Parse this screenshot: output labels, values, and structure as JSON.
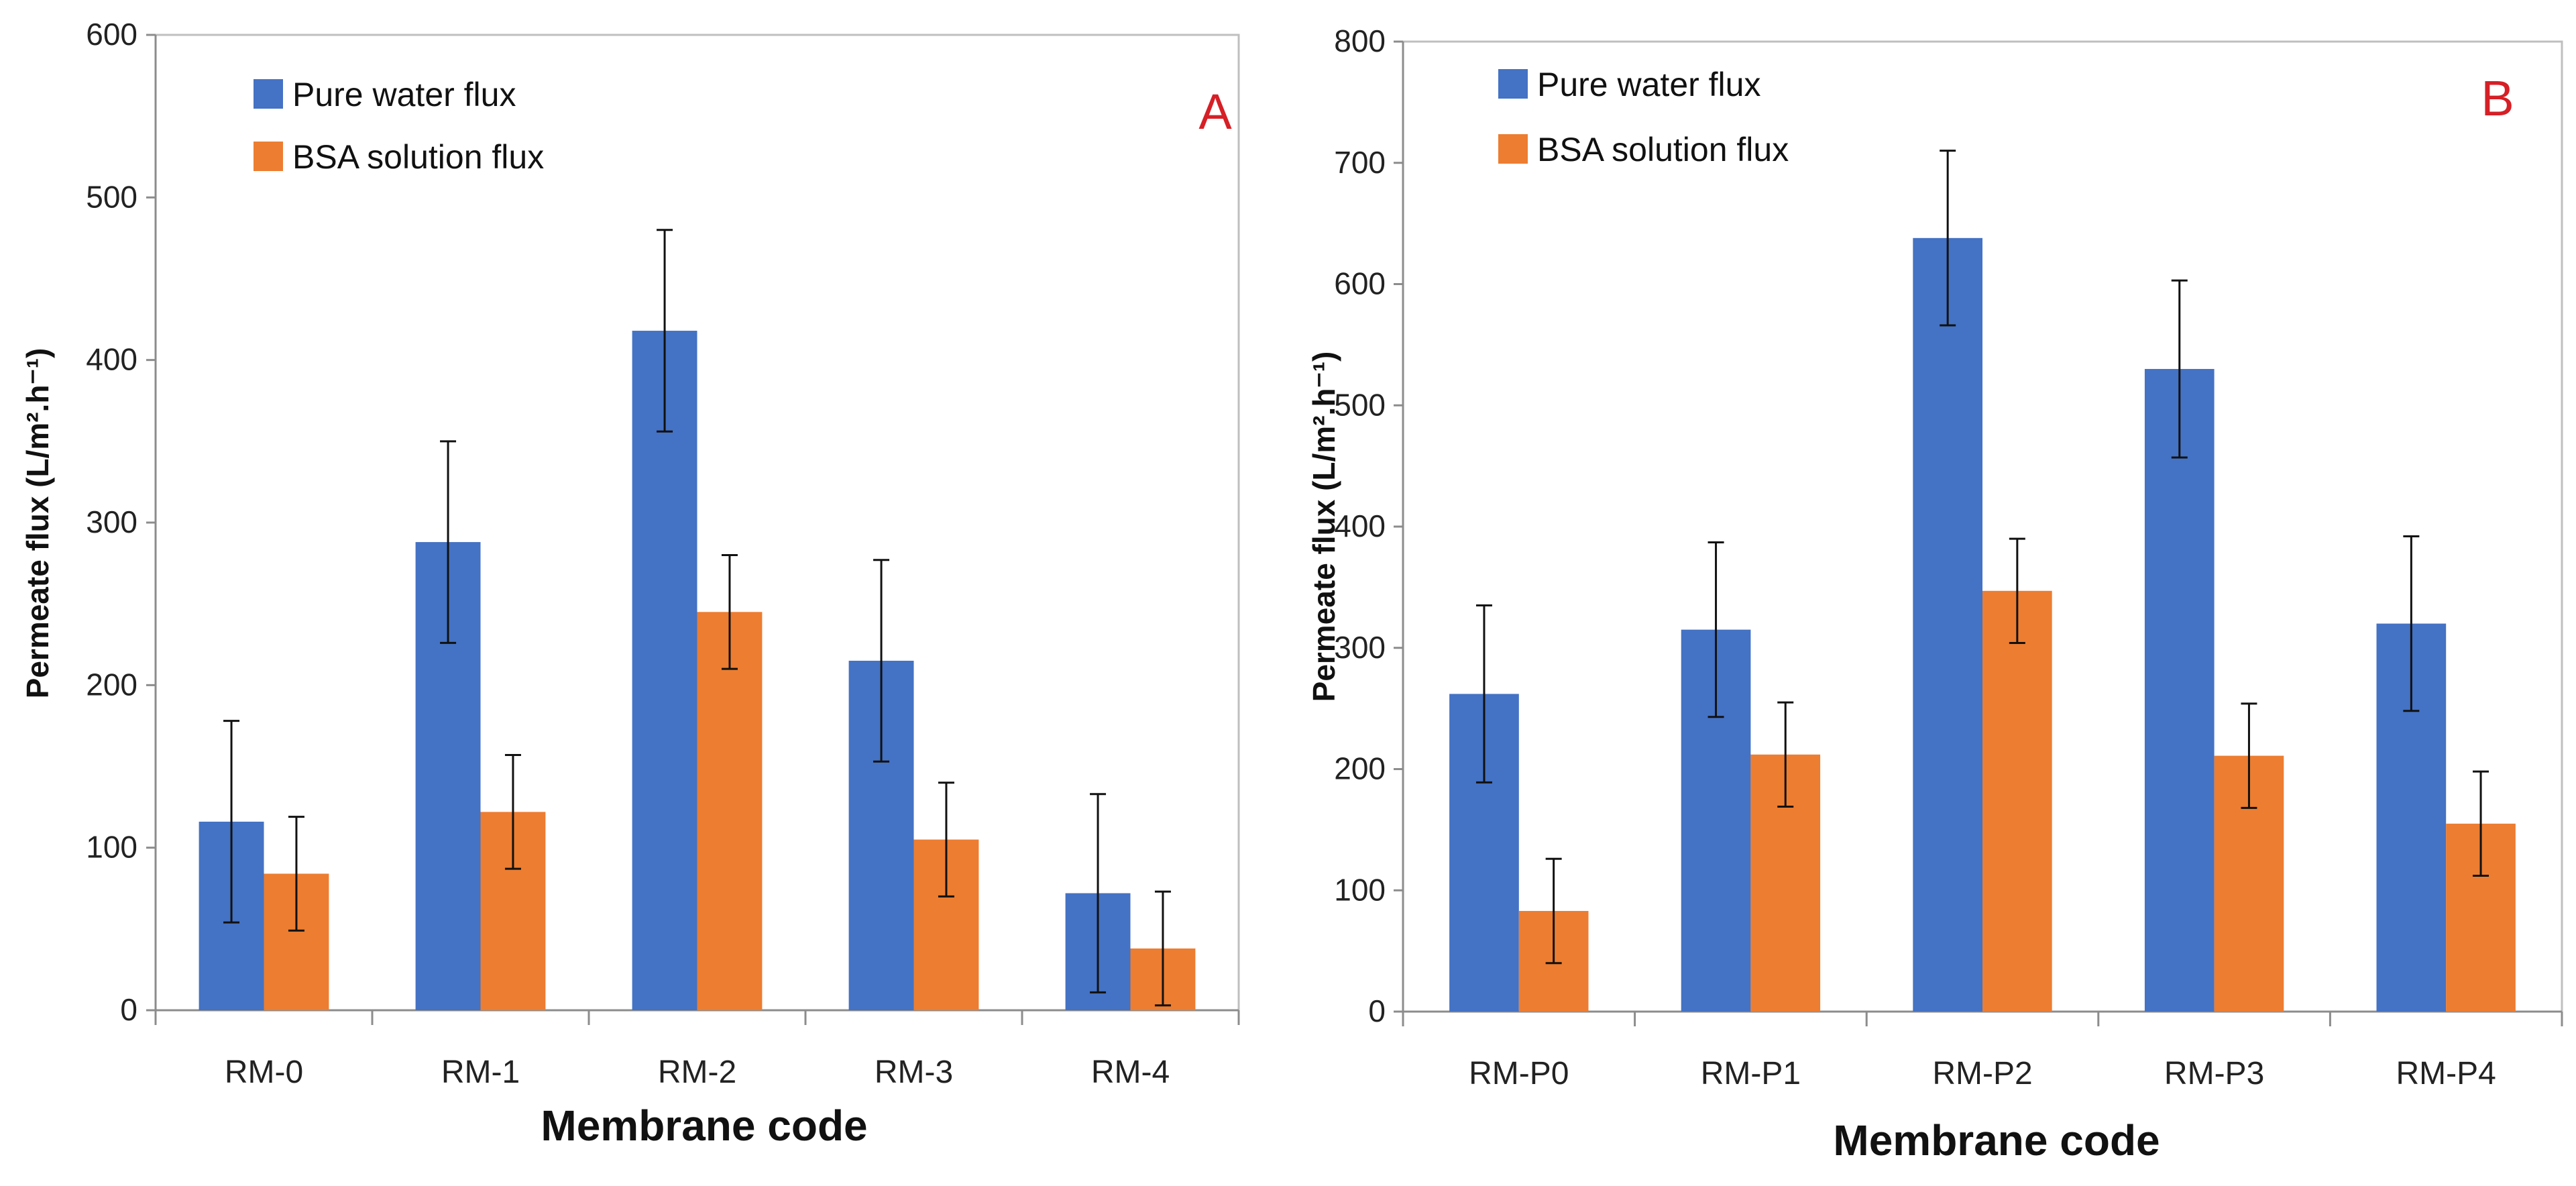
{
  "colors": {
    "pure": "#4472c4",
    "bsa": "#ed7d31",
    "panel_label": "#d61f26",
    "error_bar": "#111111"
  },
  "chart_data": [
    {
      "type": "bar",
      "panel_label": "A",
      "title": "",
      "xlabel": "Membrane code",
      "ylabel": "Permeate flux (L/m².h⁻¹)",
      "ylim": [
        0,
        600
      ],
      "yticks": [
        0,
        100,
        200,
        300,
        400,
        500,
        600
      ],
      "yticks_labels": [
        "0",
        "100",
        "200",
        "300",
        "400",
        "500",
        "600"
      ],
      "legend_position": "top-left",
      "categories": [
        "RM-0",
        "RM-1",
        "RM-2",
        "RM-3",
        "RM-4"
      ],
      "series": [
        {
          "name": "Pure water flux",
          "color": "#4472c4",
          "values": [
            116,
            288,
            418,
            215,
            72
          ],
          "errors": [
            62,
            62,
            62,
            62,
            61
          ]
        },
        {
          "name": "BSA solution flux",
          "color": "#ed7d31",
          "values": [
            84,
            122,
            245,
            105,
            38
          ],
          "errors": [
            35,
            35,
            35,
            35,
            35
          ]
        }
      ]
    },
    {
      "type": "bar",
      "panel_label": "B",
      "title": "",
      "xlabel": "Membrane code",
      "ylabel": "Permeate flux  (L/m².h⁻¹)",
      "ylim": [
        0,
        800
      ],
      "yticks": [
        0,
        100,
        200,
        300,
        400,
        500,
        600,
        700,
        800
      ],
      "yticks_labels": [
        "0",
        "100",
        "200",
        "300",
        "400",
        "500",
        "600",
        "700",
        "800"
      ],
      "legend_position": "top-left",
      "categories": [
        "RM-P0",
        "RM-P1",
        "RM-P2",
        "RM-P3",
        "RM-P4"
      ],
      "series": [
        {
          "name": "Pure water flux",
          "color": "#4472c4",
          "values": [
            262,
            315,
            638,
            530,
            320
          ],
          "errors": [
            73,
            72,
            72,
            73,
            72
          ]
        },
        {
          "name": "BSA solution flux",
          "color": "#ed7d31",
          "values": [
            83,
            212,
            347,
            211,
            155
          ],
          "errors": [
            43,
            43,
            43,
            43,
            43
          ]
        }
      ]
    }
  ]
}
